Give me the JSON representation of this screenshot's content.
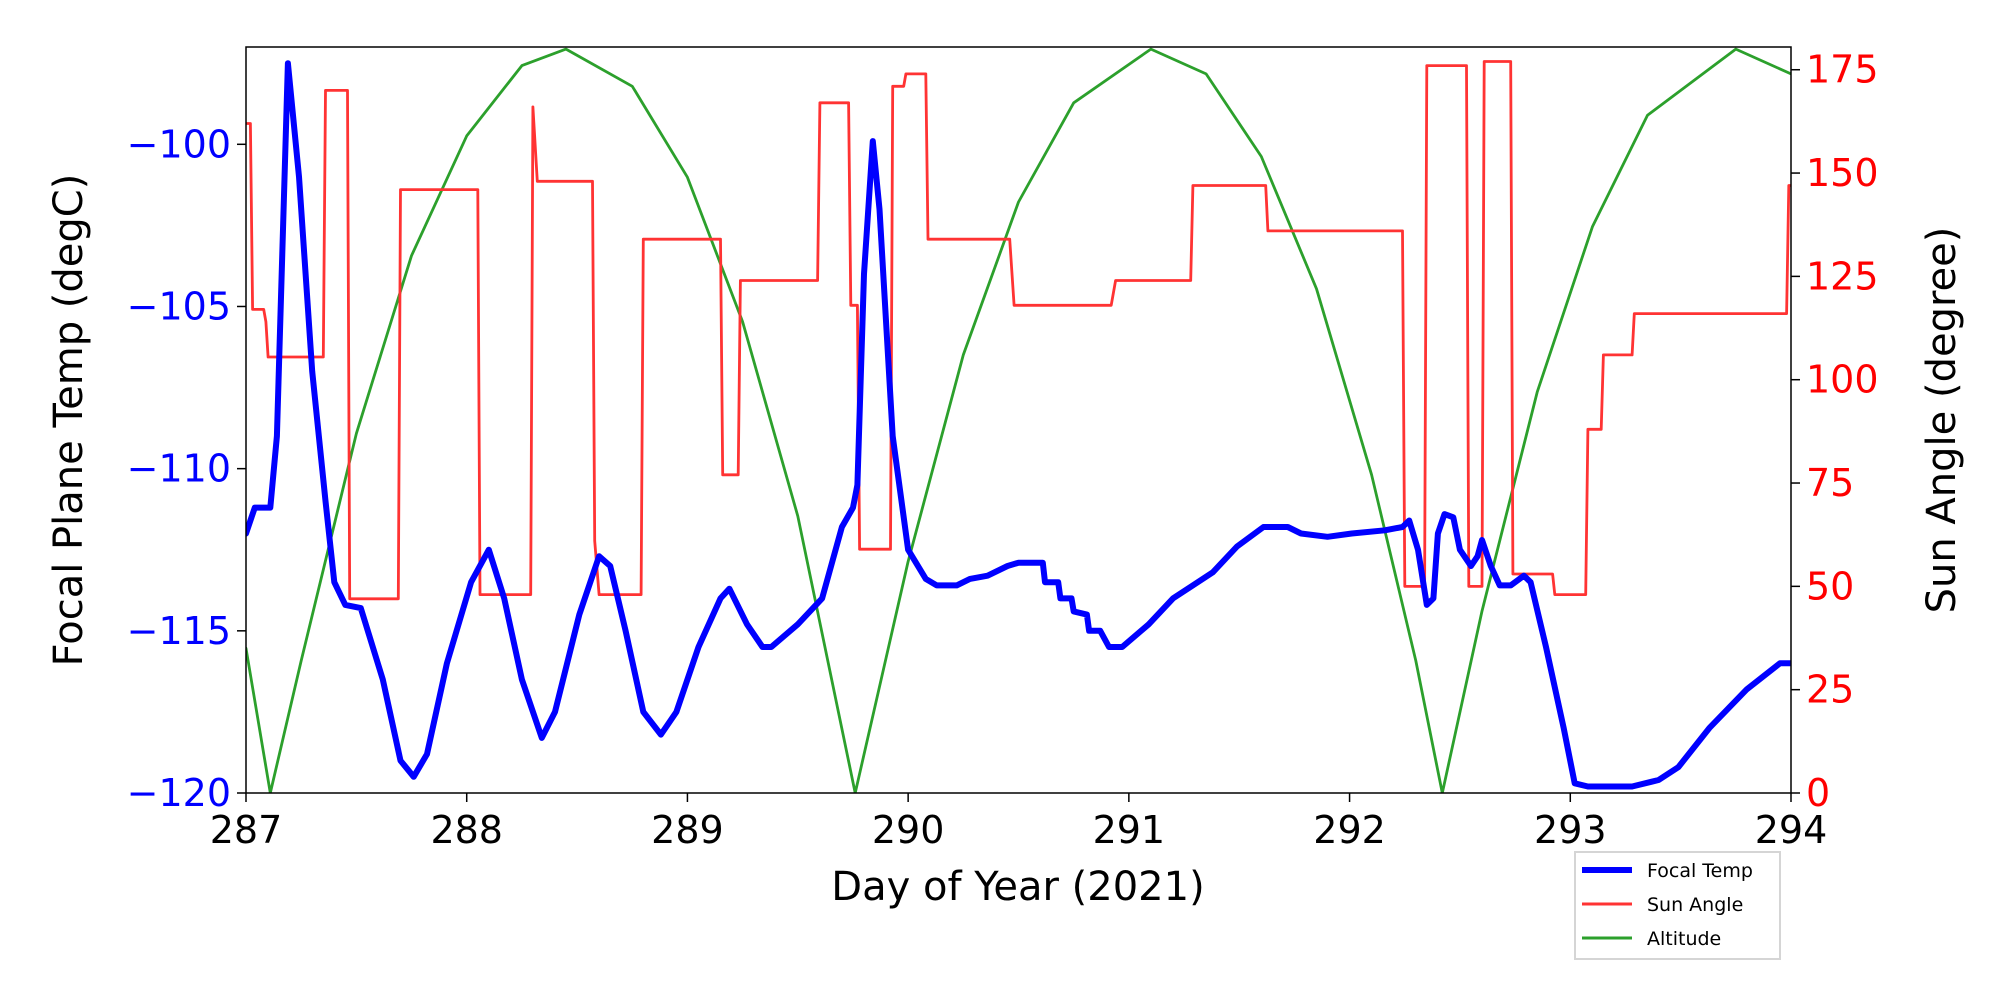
{
  "chart_data": {
    "type": "line",
    "xlabel": "Day of Year (2021)",
    "ylabel_left": "Focal Plane Temp (degC)",
    "ylabel_right": "Sun Angle (degree)",
    "xlim": [
      287,
      294
    ],
    "ylim_left": [
      -120,
      -97
    ],
    "ylim_right": [
      0,
      180.5
    ],
    "x_ticks": [
      "287",
      "288",
      "289",
      "290",
      "291",
      "292",
      "293",
      "294"
    ],
    "y_left_ticks": [
      "-120",
      "-115",
      "-110",
      "-105",
      "-100"
    ],
    "y_right_ticks": [
      "0",
      "25",
      "50",
      "75",
      "100",
      "125",
      "150",
      "175"
    ],
    "grid": false,
    "legend_position": "below-right",
    "colors": {
      "focal": "#0000ff",
      "sun": "#ff3333",
      "alt": "#2ca02c",
      "left_axis": "#0000ff",
      "right_axis": "#ff0000"
    },
    "series": [
      {
        "name": "Focal Temp",
        "axis": "left",
        "points": [
          [
            287.0,
            -112
          ],
          [
            287.04,
            -111.2
          ],
          [
            287.11,
            -111.2
          ],
          [
            287.14,
            -109
          ],
          [
            287.19,
            -97.5
          ],
          [
            287.24,
            -101
          ],
          [
            287.3,
            -107
          ],
          [
            287.36,
            -111
          ],
          [
            287.4,
            -113.5
          ],
          [
            287.45,
            -114.2
          ],
          [
            287.52,
            -114.3
          ],
          [
            287.62,
            -116.5
          ],
          [
            287.7,
            -119
          ],
          [
            287.76,
            -119.5
          ],
          [
            287.82,
            -118.8
          ],
          [
            287.91,
            -116
          ],
          [
            288.02,
            -113.5
          ],
          [
            288.1,
            -112.5
          ],
          [
            288.17,
            -114
          ],
          [
            288.25,
            -116.5
          ],
          [
            288.34,
            -118.3
          ],
          [
            288.4,
            -117.5
          ],
          [
            288.51,
            -114.5
          ],
          [
            288.6,
            -112.7
          ],
          [
            288.65,
            -113
          ],
          [
            288.72,
            -115
          ],
          [
            288.8,
            -117.5
          ],
          [
            288.88,
            -118.2
          ],
          [
            288.95,
            -117.5
          ],
          [
            289.05,
            -115.5
          ],
          [
            289.15,
            -114
          ],
          [
            289.19,
            -113.7
          ],
          [
            289.27,
            -114.8
          ],
          [
            289.34,
            -115.5
          ],
          [
            289.38,
            -115.5
          ],
          [
            289.5,
            -114.8
          ],
          [
            289.61,
            -114
          ],
          [
            289.7,
            -111.8
          ],
          [
            289.75,
            -111.2
          ],
          [
            289.77,
            -110.5
          ],
          [
            289.8,
            -104
          ],
          [
            289.84,
            -99.9
          ],
          [
            289.87,
            -102
          ],
          [
            289.93,
            -109
          ],
          [
            290.0,
            -112.5
          ],
          [
            290.08,
            -113.4
          ],
          [
            290.13,
            -113.6
          ],
          [
            290.22,
            -113.6
          ],
          [
            290.28,
            -113.4
          ],
          [
            290.36,
            -113.3
          ],
          [
            290.45,
            -113
          ],
          [
            290.5,
            -112.9
          ],
          [
            290.61,
            -112.9
          ],
          [
            290.62,
            -113.5
          ],
          [
            290.68,
            -113.5
          ],
          [
            290.69,
            -114
          ],
          [
            290.74,
            -114
          ],
          [
            290.75,
            -114.4
          ],
          [
            290.81,
            -114.5
          ],
          [
            290.82,
            -115
          ],
          [
            290.87,
            -115
          ],
          [
            290.91,
            -115.5
          ],
          [
            290.97,
            -115.5
          ],
          [
            291.09,
            -114.8
          ],
          [
            291.2,
            -114
          ],
          [
            291.29,
            -113.6
          ],
          [
            291.38,
            -113.2
          ],
          [
            291.49,
            -112.4
          ],
          [
            291.61,
            -111.8
          ],
          [
            291.72,
            -111.8
          ],
          [
            291.78,
            -112
          ],
          [
            291.9,
            -112.1
          ],
          [
            292.01,
            -112
          ],
          [
            292.16,
            -111.9
          ],
          [
            292.24,
            -111.8
          ],
          [
            292.27,
            -111.6
          ],
          [
            292.31,
            -112.5
          ],
          [
            292.35,
            -114.2
          ],
          [
            292.38,
            -114
          ],
          [
            292.4,
            -112
          ],
          [
            292.43,
            -111.4
          ],
          [
            292.47,
            -111.5
          ],
          [
            292.5,
            -112.5
          ],
          [
            292.55,
            -113
          ],
          [
            292.58,
            -112.7
          ],
          [
            292.6,
            -112.2
          ],
          [
            292.64,
            -113
          ],
          [
            292.68,
            -113.6
          ],
          [
            292.73,
            -113.6
          ],
          [
            292.79,
            -113.3
          ],
          [
            292.82,
            -113.5
          ],
          [
            292.89,
            -115.5
          ],
          [
            292.97,
            -118
          ],
          [
            293.02,
            -119.7
          ],
          [
            293.08,
            -119.8
          ],
          [
            293.28,
            -119.8
          ],
          [
            293.4,
            -119.6
          ],
          [
            293.49,
            -119.2
          ],
          [
            293.63,
            -118
          ],
          [
            293.8,
            -116.8
          ],
          [
            293.95,
            -116
          ],
          [
            294.0,
            -116
          ]
        ]
      },
      {
        "name": "Sun Angle",
        "axis": "right",
        "points": [
          [
            287.0,
            162
          ],
          [
            287.02,
            162
          ],
          [
            287.03,
            117
          ],
          [
            287.08,
            117
          ],
          [
            287.09,
            114
          ],
          [
            287.1,
            105.5
          ],
          [
            287.35,
            105.5
          ],
          [
            287.36,
            170
          ],
          [
            287.46,
            170
          ],
          [
            287.47,
            47
          ],
          [
            287.69,
            47
          ],
          [
            287.7,
            146
          ],
          [
            288.05,
            146
          ],
          [
            288.06,
            48
          ],
          [
            288.29,
            48
          ],
          [
            288.3,
            166
          ],
          [
            288.32,
            148
          ],
          [
            288.57,
            148
          ],
          [
            288.58,
            61
          ],
          [
            288.6,
            48
          ],
          [
            288.79,
            48
          ],
          [
            288.8,
            134
          ],
          [
            289.15,
            134
          ],
          [
            289.16,
            77
          ],
          [
            289.23,
            77
          ],
          [
            289.24,
            124
          ],
          [
            289.59,
            124
          ],
          [
            289.6,
            167
          ],
          [
            289.73,
            167
          ],
          [
            289.74,
            118
          ],
          [
            289.77,
            118
          ],
          [
            289.78,
            59
          ],
          [
            289.92,
            59
          ],
          [
            289.93,
            171
          ],
          [
            289.98,
            171
          ],
          [
            289.99,
            174
          ],
          [
            290.08,
            174
          ],
          [
            290.09,
            134
          ],
          [
            290.46,
            134
          ],
          [
            290.48,
            118
          ],
          [
            290.92,
            118
          ],
          [
            290.94,
            124
          ],
          [
            291.28,
            124
          ],
          [
            291.29,
            147
          ],
          [
            291.62,
            147
          ],
          [
            291.63,
            136
          ],
          [
            292.24,
            136
          ],
          [
            292.25,
            50
          ],
          [
            292.34,
            50
          ],
          [
            292.35,
            176
          ],
          [
            292.53,
            176
          ],
          [
            292.54,
            50
          ],
          [
            292.6,
            50
          ],
          [
            292.61,
            177
          ],
          [
            292.73,
            177
          ],
          [
            292.74,
            53
          ],
          [
            292.92,
            53
          ],
          [
            292.93,
            48
          ],
          [
            293.07,
            48
          ],
          [
            293.08,
            88
          ],
          [
            293.14,
            88
          ],
          [
            293.15,
            106
          ],
          [
            293.28,
            106
          ],
          [
            293.29,
            116
          ],
          [
            293.98,
            116
          ],
          [
            293.99,
            147
          ],
          [
            294.0,
            147
          ]
        ]
      },
      {
        "name": "Altitude",
        "axis": "right",
        "points": [
          [
            287.0,
            35
          ],
          [
            287.11,
            0
          ],
          [
            287.25,
            32
          ],
          [
            287.5,
            87
          ],
          [
            287.75,
            130
          ],
          [
            288.0,
            159
          ],
          [
            288.25,
            176
          ],
          [
            288.45,
            180
          ],
          [
            288.75,
            171
          ],
          [
            289.0,
            149
          ],
          [
            289.25,
            114
          ],
          [
            289.5,
            67
          ],
          [
            289.76,
            0
          ],
          [
            290.0,
            56
          ],
          [
            290.25,
            106
          ],
          [
            290.5,
            143
          ],
          [
            290.75,
            167
          ],
          [
            291.1,
            180
          ],
          [
            291.35,
            174
          ],
          [
            291.6,
            154
          ],
          [
            291.85,
            122
          ],
          [
            292.1,
            77
          ],
          [
            292.3,
            32
          ],
          [
            292.42,
            0
          ],
          [
            292.6,
            44
          ],
          [
            292.85,
            97
          ],
          [
            293.1,
            137
          ],
          [
            293.35,
            164
          ],
          [
            293.75,
            180
          ],
          [
            294.0,
            174
          ]
        ]
      }
    ]
  }
}
